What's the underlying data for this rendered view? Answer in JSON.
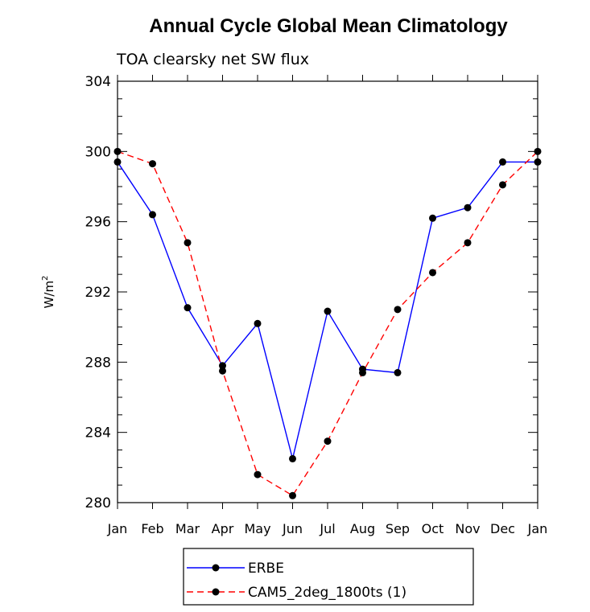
{
  "chart_data": {
    "type": "line",
    "title": "Annual Cycle Global Mean Climatology",
    "subtitle": "TOA clearsky net SW flux",
    "xlabel": "",
    "ylabel": "W/m",
    "ylabel_superscript": "2",
    "categories": [
      "Jan",
      "Feb",
      "Mar",
      "Apr",
      "May",
      "Jun",
      "Jul",
      "Aug",
      "Sep",
      "Oct",
      "Nov",
      "Dec",
      "Jan"
    ],
    "ylim": [
      280,
      304
    ],
    "yticks": [
      280,
      284,
      288,
      292,
      296,
      300,
      304
    ],
    "series": [
      {
        "name": "ERBE",
        "color": "#0000ff",
        "dashed": false,
        "values": [
          299.4,
          296.4,
          291.1,
          287.8,
          290.2,
          282.5,
          290.9,
          287.6,
          287.4,
          296.2,
          296.8,
          299.4,
          299.4
        ]
      },
      {
        "name": "CAM5_2deg_1800ts (1)",
        "color": "#ff0000",
        "dashed": true,
        "values": [
          300.0,
          299.3,
          294.8,
          287.5,
          281.6,
          280.4,
          283.5,
          287.4,
          291.0,
          293.1,
          294.8,
          298.1,
          300.0
        ]
      }
    ],
    "marker_color": "#000000",
    "grid": false,
    "legend_position": "bottom"
  }
}
